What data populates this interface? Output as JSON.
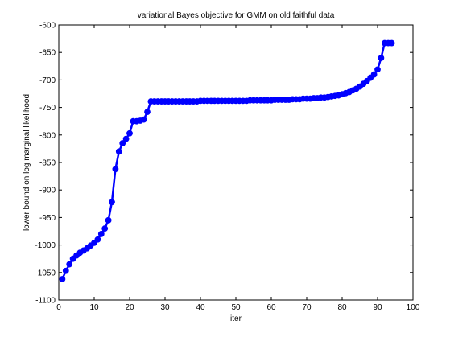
{
  "chart_data": {
    "type": "line",
    "title": "variational Bayes objective for GMM on old faithful data",
    "xlabel": "iter",
    "ylabel": "lower bound on log marginal likelihood",
    "xlim": [
      0,
      100
    ],
    "ylim": [
      -1100,
      -600
    ],
    "x_ticks": [
      0,
      10,
      20,
      30,
      40,
      50,
      60,
      70,
      80,
      90,
      100
    ],
    "y_ticks": [
      -1100,
      -1050,
      -1000,
      -950,
      -900,
      -850,
      -800,
      -750,
      -700,
      -650,
      -600
    ],
    "grid": false,
    "line_color": "#0000ff",
    "marker": "circle",
    "series": [
      {
        "x": [
          1,
          2,
          3,
          4,
          5,
          6,
          7,
          8,
          9,
          10,
          11,
          12,
          13,
          14,
          15,
          16,
          17,
          18,
          19,
          20,
          21,
          22,
          23,
          24,
          25,
          26,
          27,
          28,
          29,
          30,
          31,
          32,
          33,
          34,
          35,
          36,
          37,
          38,
          39,
          40,
          41,
          42,
          43,
          44,
          45,
          46,
          47,
          48,
          49,
          50,
          51,
          52,
          53,
          54,
          55,
          56,
          57,
          58,
          59,
          60,
          61,
          62,
          63,
          64,
          65,
          66,
          67,
          68,
          69,
          70,
          71,
          72,
          73,
          74,
          75,
          76,
          77,
          78,
          79,
          80,
          81,
          82,
          83,
          84,
          85,
          86,
          87,
          88,
          89,
          90,
          91,
          92,
          93,
          94
        ],
        "y": [
          -1062,
          -1047,
          -1035,
          -1025,
          -1019,
          -1014,
          -1010,
          -1006,
          -1001,
          -996,
          -990,
          -980,
          -970,
          -955,
          -922,
          -862,
          -830,
          -815,
          -807,
          -797,
          -775,
          -775,
          -774,
          -772,
          -758,
          -739,
          -739,
          -739,
          -739,
          -739,
          -739,
          -739,
          -739,
          -739,
          -739,
          -739,
          -739,
          -739,
          -739,
          -738,
          -738,
          -738,
          -738,
          -738,
          -738,
          -738,
          -738,
          -738,
          -738,
          -738,
          -738,
          -738,
          -738,
          -737,
          -737,
          -737,
          -737,
          -737,
          -737,
          -737,
          -736,
          -736,
          -736,
          -736,
          -736,
          -735,
          -735,
          -735,
          -734,
          -734,
          -734,
          -733,
          -733,
          -732,
          -732,
          -731,
          -730,
          -729,
          -728,
          -726,
          -724,
          -722,
          -719,
          -716,
          -712,
          -707,
          -702,
          -696,
          -690,
          -681,
          -660,
          -633,
          -633,
          -633
        ]
      }
    ]
  }
}
